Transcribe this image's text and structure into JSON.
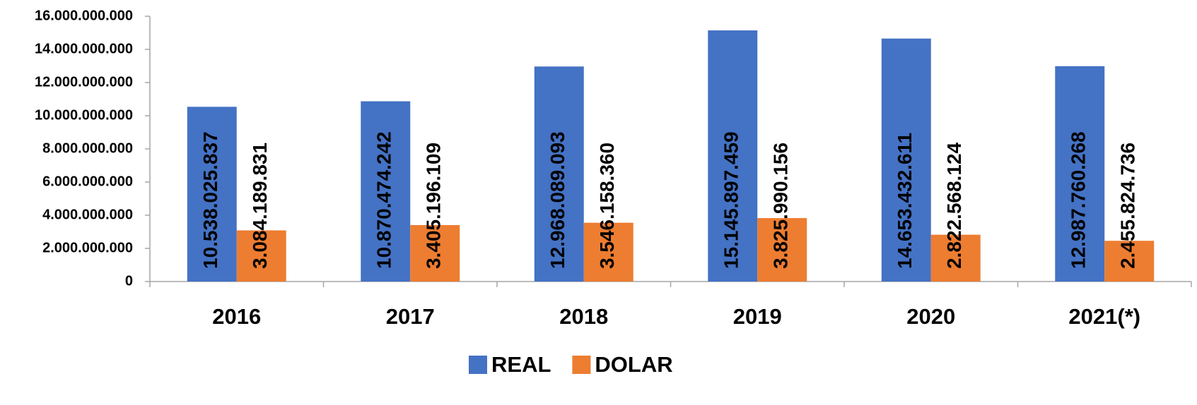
{
  "chart_data": {
    "type": "bar",
    "categories": [
      "2016",
      "2017",
      "2018",
      "2019",
      "2020",
      "2021(*)"
    ],
    "series": [
      {
        "name": "REAL",
        "color": "#4472c4",
        "values": [
          10538025837,
          10870474242,
          12968089093,
          15145897459,
          14653432611,
          12987760268
        ],
        "value_labels": [
          "10.538.025.837",
          "10.870.474.242",
          "12.968.089.093",
          "15.145.897.459",
          "14.653.432.611",
          "12.987.760.268"
        ]
      },
      {
        "name": "DOLAR",
        "color": "#ed7d31",
        "values": [
          3084189831,
          3405196109,
          3546158360,
          3825990156,
          2822568124,
          2455824736
        ],
        "value_labels": [
          "3.084.189.831",
          "3.405.196.109",
          "3.546.158.360",
          "3.825.990.156",
          "2.822.568.124",
          "2.455.824.736"
        ]
      }
    ],
    "ylim": [
      0,
      16000000000
    ],
    "yticks": [
      0,
      {
        "value": 2000000000,
        "label": "2.000.000.000"
      },
      {
        "value": 4000000000,
        "label": "4.000.000.000"
      },
      {
        "value": 6000000000,
        "label": "6.000.000.000"
      },
      {
        "value": 8000000000,
        "label": "8.000.000.000"
      },
      {
        "value": 10000000000,
        "label": "10.000.000.000"
      },
      {
        "value": 12000000000,
        "label": "12.000.000.000"
      },
      {
        "value": 14000000000,
        "label": "14.000.000.000"
      },
      {
        "value": 16000000000,
        "label": "16.000.000.000"
      }
    ],
    "grid": false,
    "legend": "bottom"
  }
}
